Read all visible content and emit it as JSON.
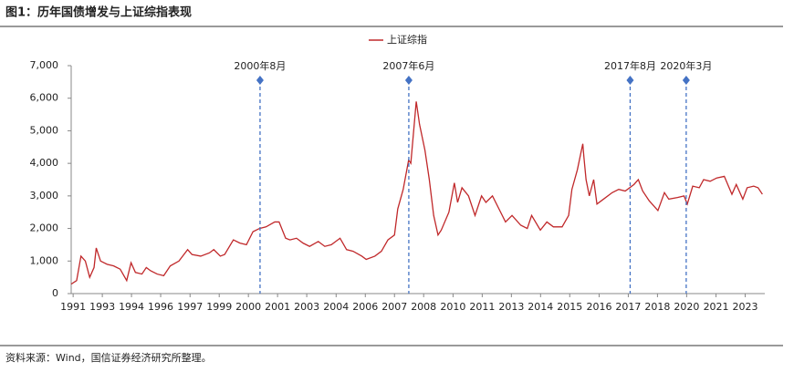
{
  "title": "图1：历年国债增发与上证综指表现",
  "source": "资料来源：Wind，国信证券经济研究所整理。",
  "chart_data": {
    "type": "line",
    "x": [
      1991.95,
      1992.2,
      1992.4,
      1992.6,
      1992.8,
      1993.0,
      1993.1,
      1993.3,
      1993.6,
      1993.9,
      1994.2,
      1994.5,
      1994.7,
      1994.9,
      1995.2,
      1995.4,
      1995.6,
      1995.9,
      1996.2,
      1996.5,
      1996.9,
      1997.3,
      1997.5,
      1997.9,
      1998.3,
      1998.5,
      1998.8,
      1999.0,
      1999.4,
      1999.7,
      2000.0,
      2000.3,
      2000.6,
      2000.9,
      2001.3,
      2001.5,
      2001.8,
      2002.0,
      2002.3,
      2002.6,
      2002.9,
      2003.3,
      2003.6,
      2003.9,
      2004.3,
      2004.6,
      2004.9,
      2005.3,
      2005.5,
      2005.9,
      2006.2,
      2006.5,
      2006.8,
      2006.95,
      2007.2,
      2007.45,
      2007.55,
      2007.8,
      2007.95,
      2008.2,
      2008.4,
      2008.6,
      2008.8,
      2008.95,
      2009.3,
      2009.55,
      2009.7,
      2009.9,
      2010.2,
      2010.5,
      2010.8,
      2011.0,
      2011.3,
      2011.6,
      2011.9,
      2012.2,
      2012.6,
      2012.9,
      2013.1,
      2013.5,
      2013.8,
      2014.1,
      2014.5,
      2014.8,
      2014.95,
      2015.2,
      2015.45,
      2015.5,
      2015.6,
      2015.75,
      2015.95,
      2016.1,
      2016.4,
      2016.8,
      2017.1,
      2017.4,
      2017.8,
      2018.0,
      2018.2,
      2018.5,
      2018.9,
      2019.2,
      2019.4,
      2019.8,
      2020.1,
      2020.25,
      2020.5,
      2020.8,
      2021.0,
      2021.3,
      2021.6,
      2021.95,
      2022.3,
      2022.5,
      2022.8,
      2023.0,
      2023.3,
      2023.5,
      2023.7
    ],
    "series": [
      {
        "name": "上证综指",
        "color": "#c0282a",
        "values": [
          290,
          400,
          1150,
          1000,
          500,
          800,
          1400,
          1000,
          900,
          850,
          750,
          400,
          950,
          650,
          600,
          800,
          700,
          600,
          550,
          850,
          1000,
          1350,
          1200,
          1150,
          1250,
          1350,
          1150,
          1200,
          1650,
          1550,
          1500,
          1900,
          2000,
          2050,
          2200,
          2200,
          1700,
          1650,
          1700,
          1550,
          1450,
          1600,
          1450,
          1500,
          1700,
          1350,
          1300,
          1150,
          1050,
          1150,
          1300,
          1650,
          1800,
          2600,
          3200,
          4100,
          4000,
          5900,
          5200,
          4400,
          3500,
          2400,
          1800,
          1950,
          2500,
          3400,
          2800,
          3250,
          3000,
          2400,
          3000,
          2800,
          3000,
          2600,
          2200,
          2400,
          2100,
          2000,
          2400,
          1950,
          2200,
          2050,
          2050,
          2400,
          3200,
          3800,
          4600,
          4200,
          3500,
          3000,
          3500,
          2750,
          2900,
          3100,
          3200,
          3150,
          3350,
          3500,
          3150,
          2850,
          2550,
          3100,
          2900,
          2950,
          3000,
          2750,
          3300,
          3250,
          3500,
          3450,
          3550,
          3600,
          3050,
          3350,
          2900,
          3250,
          3300,
          3250,
          3050
        ]
      }
    ],
    "xlim": [
      1991.95,
      2023.81
    ],
    "xticks": [
      {
        "value": 1992.04,
        "label": "1991"
      },
      {
        "value": 1993.38,
        "label": "1993"
      },
      {
        "value": 1994.72,
        "label": "1994"
      },
      {
        "value": 1996.06,
        "label": "1996"
      },
      {
        "value": 1997.41,
        "label": "1997"
      },
      {
        "value": 1998.75,
        "label": "1999"
      },
      {
        "value": 2000.09,
        "label": "2000"
      },
      {
        "value": 2001.43,
        "label": "2001"
      },
      {
        "value": 2002.77,
        "label": "2003"
      },
      {
        "value": 2004.12,
        "label": "2004"
      },
      {
        "value": 2005.46,
        "label": "2006"
      },
      {
        "value": 2006.8,
        "label": "2007"
      },
      {
        "value": 2008.14,
        "label": "2008"
      },
      {
        "value": 2009.49,
        "label": "2010"
      },
      {
        "value": 2010.83,
        "label": "2011"
      },
      {
        "value": 2012.17,
        "label": "2013"
      },
      {
        "value": 2013.51,
        "label": "2014"
      },
      {
        "value": 2014.85,
        "label": "2015"
      },
      {
        "value": 2016.2,
        "label": "2016"
      },
      {
        "value": 2017.54,
        "label": "2017"
      },
      {
        "value": 2018.88,
        "label": "2018"
      },
      {
        "value": 2020.22,
        "label": "2020"
      },
      {
        "value": 2021.57,
        "label": "2021"
      },
      {
        "value": 2022.91,
        "label": "2023"
      }
    ],
    "ylim": [
      0,
      7000
    ],
    "yticks": [
      0,
      {
        "value": 1000,
        "label": "1,000"
      },
      {
        "value": 2000,
        "label": "2,000"
      },
      {
        "value": 3000,
        "label": "3,000"
      },
      {
        "value": 4000,
        "label": "4,000"
      },
      {
        "value": 5000,
        "label": "5,000"
      },
      {
        "value": 6000,
        "label": "6,000"
      },
      {
        "value": 7000,
        "label": "7,000"
      }
    ],
    "annotations": [
      {
        "x": 2000.625,
        "label": "2000年8月",
        "color": "#4472c4"
      },
      {
        "x": 2007.458,
        "label": "2007年6月",
        "color": "#4472c4"
      },
      {
        "x": 2017.625,
        "label": "2017年8月",
        "color": "#4472c4"
      },
      {
        "x": 2020.2,
        "label": "2020年3月",
        "color": "#4472c4"
      }
    ],
    "legend": "top"
  }
}
